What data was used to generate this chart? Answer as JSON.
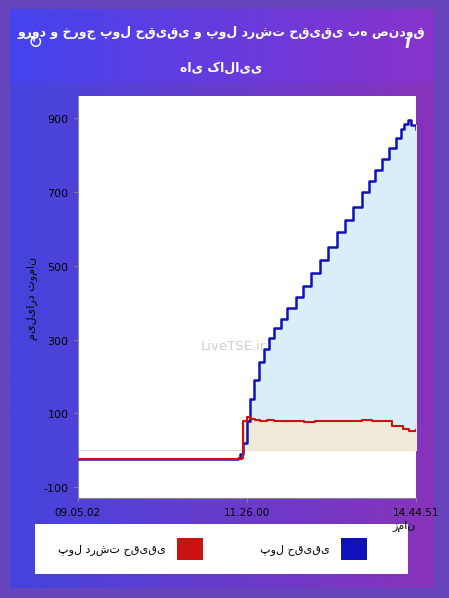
{
  "title_line1": "ورود و خروج پول حقیقی و پول درشت حقیقی به صندوق",
  "title_line2": "های کالایی",
  "ylabel": "میلیارد تومان",
  "xlabel": "زمان",
  "xtick_labels": [
    "09.05.02",
    "11.26.00",
    "14.44.51"
  ],
  "ytick_values": [
    -100,
    100,
    300,
    500,
    700,
    900
  ],
  "ylim": [
    -130,
    960
  ],
  "xlim": [
    0.0,
    1.0
  ],
  "legend_blue": "پول حقیقی",
  "legend_red": "پول درشت حقیقی",
  "blue_color": "#1111bb",
  "red_color": "#cc1111",
  "fill_blue_color": "#d8eef8",
  "fill_yellow_color": "#f0ead8",
  "bg_outer_left": "#5555dd",
  "bg_outer_right": "#8833aa",
  "bg_chart": "#ffffff",
  "title_text_color": "#ffffff",
  "watermark": "LiveTSE.ir",
  "blue_x": [
    0.0,
    0.47,
    0.475,
    0.48,
    0.49,
    0.5,
    0.51,
    0.52,
    0.535,
    0.55,
    0.565,
    0.58,
    0.6,
    0.62,
    0.645,
    0.665,
    0.69,
    0.715,
    0.74,
    0.765,
    0.79,
    0.815,
    0.84,
    0.86,
    0.88,
    0.9,
    0.92,
    0.94,
    0.955,
    0.965,
    0.975,
    0.985,
    1.0
  ],
  "blue_y": [
    -25,
    -25,
    -22,
    -10,
    20,
    80,
    140,
    190,
    240,
    275,
    305,
    330,
    355,
    385,
    415,
    445,
    480,
    515,
    550,
    590,
    625,
    660,
    700,
    730,
    760,
    790,
    820,
    845,
    870,
    885,
    895,
    880,
    870
  ],
  "red_x": [
    0.0,
    0.47,
    0.475,
    0.48,
    0.485,
    0.49,
    0.5,
    0.51,
    0.525,
    0.54,
    0.56,
    0.58,
    0.61,
    0.64,
    0.67,
    0.7,
    0.73,
    0.76,
    0.8,
    0.84,
    0.87,
    0.9,
    0.93,
    0.96,
    0.98,
    1.0
  ],
  "red_y": [
    -25,
    -25,
    -25,
    -25,
    -20,
    80,
    90,
    85,
    82,
    79,
    82,
    80,
    80,
    79,
    77,
    79,
    78,
    79,
    80,
    81,
    80,
    78,
    67,
    58,
    52,
    55
  ]
}
